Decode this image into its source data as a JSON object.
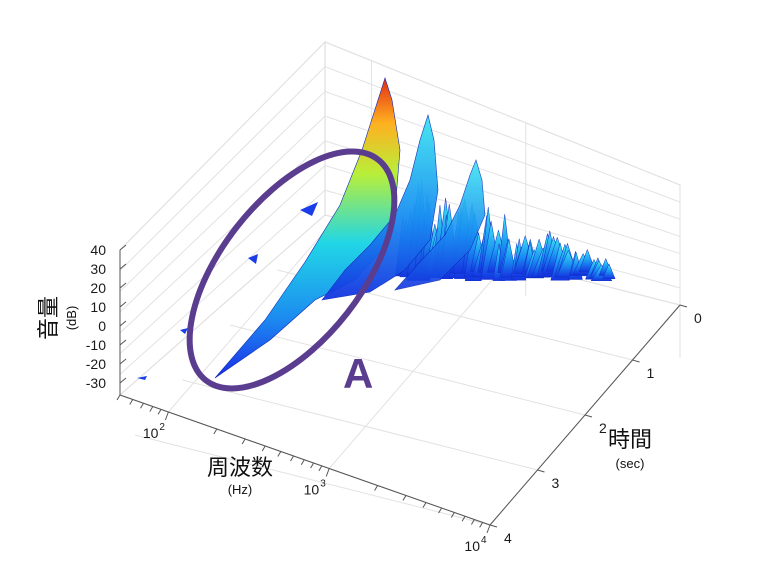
{
  "chart_data": {
    "type": "surface",
    "view": "3d-perspective",
    "z_axis": {
      "title": "音量",
      "unit": "(dB)",
      "ticks": [
        "40",
        "30",
        "20",
        "10",
        "0",
        "-10",
        "-20",
        "-30"
      ],
      "range": [
        -30,
        40
      ]
    },
    "x_axis": {
      "title": "周波数",
      "unit": "(Hz)",
      "scale": "log",
      "range": [
        50,
        10000
      ],
      "tick_labels": [
        {
          "base": "10",
          "exp": "2",
          "value": 100
        },
        {
          "base": "10",
          "exp": "3",
          "value": 1000
        },
        {
          "base": "10",
          "exp": "4",
          "value": 10000
        }
      ]
    },
    "y_axis": {
      "title": "時間",
      "unit": "(sec)",
      "ticks": [
        "0",
        "1",
        "2",
        "3",
        "4"
      ],
      "range": [
        0,
        4
      ]
    },
    "grid": true,
    "colormap": "jet",
    "peak": {
      "time_sec": 0,
      "frequency_hz": 100,
      "level_db": 40
    },
    "secondary_peaks": [
      {
        "time_sec": 0,
        "frequency_hz": 180,
        "level_db": 30
      },
      {
        "time_sec": 0,
        "frequency_hz": 300,
        "level_db": 20
      }
    ],
    "annotation": {
      "label": "A",
      "shape": "ellipse",
      "color": "#5b3d8f"
    }
  }
}
